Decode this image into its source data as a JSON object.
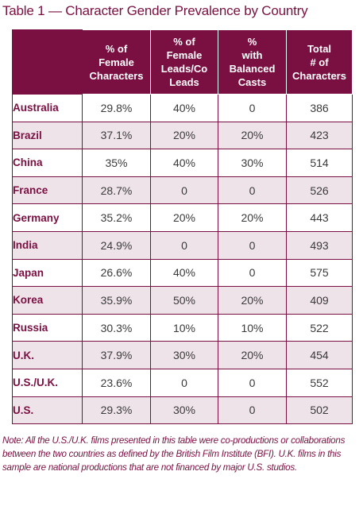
{
  "title": "Table 1 — Character Gender Prevalence by Country",
  "headers": [
    "% of Female Characters",
    "% of Female Leads/Co Leads",
    "% with Balanced Casts",
    "Total # of Characters"
  ],
  "header_lines": [
    [
      "% of",
      "Female",
      "Characters"
    ],
    [
      "% of",
      "Female",
      "Leads/Co",
      "Leads"
    ],
    [
      "%",
      "with",
      "Balanced",
      "Casts"
    ],
    [
      "Total",
      "# of",
      "Characters"
    ]
  ],
  "rows": [
    {
      "country": "Australia",
      "values": [
        "29.8%",
        "40%",
        "0",
        "386"
      ]
    },
    {
      "country": "Brazil",
      "values": [
        "37.1%",
        "20%",
        "20%",
        "423"
      ]
    },
    {
      "country": "China",
      "values": [
        "35%",
        "40%",
        "30%",
        "514"
      ]
    },
    {
      "country": "France",
      "values": [
        "28.7%",
        "0",
        "0",
        "526"
      ]
    },
    {
      "country": "Germany",
      "values": [
        "35.2%",
        "20%",
        "20%",
        "443"
      ]
    },
    {
      "country": "India",
      "values": [
        "24.9%",
        "0",
        "0",
        "493"
      ]
    },
    {
      "country": "Japan",
      "values": [
        "26.6%",
        "40%",
        "0",
        "575"
      ]
    },
    {
      "country": "Korea",
      "values": [
        "35.9%",
        "50%",
        "20%",
        "409"
      ]
    },
    {
      "country": "Russia",
      "values": [
        "30.3%",
        "10%",
        "10%",
        "522"
      ]
    },
    {
      "country": "U.K.",
      "values": [
        "37.9%",
        "30%",
        "20%",
        "454"
      ]
    },
    {
      "country": "U.S./U.K.",
      "values": [
        "23.6%",
        "0",
        "0",
        "552"
      ]
    },
    {
      "country": "U.S.",
      "values": [
        "29.3%",
        "30%",
        "0",
        "502"
      ]
    }
  ],
  "note": "Note: All the U.S./U.K. films presented in this table were co-productions or collaborations between the two countries as defined by the British Film Institute (BFI). U.K. films in this sample are national productions that are not financed by major U.S. studios.",
  "colors": {
    "accent": "#7a1041",
    "stripe": "#efe3ea"
  }
}
